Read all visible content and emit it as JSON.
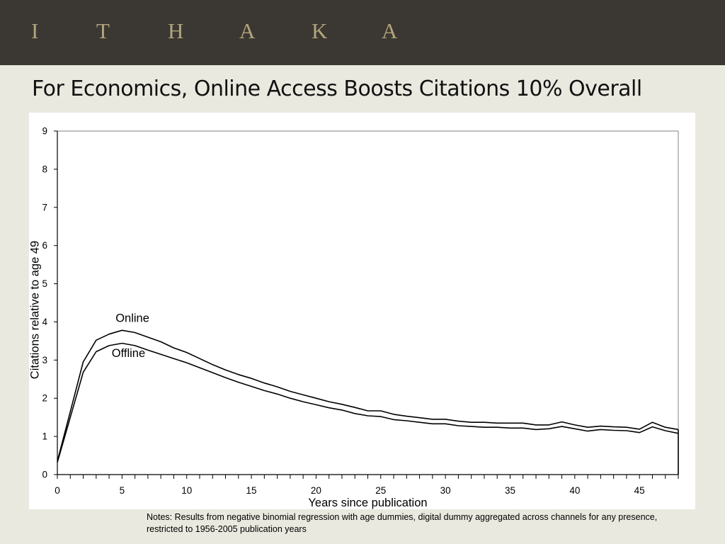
{
  "header": {
    "logo_letters": [
      "I",
      "T",
      "H",
      "A",
      "K",
      "A"
    ]
  },
  "slide": {
    "title": "For Economics, Online Access Boosts Citations 10% Overall"
  },
  "notes": "Notes: Results from negative binomial regression with age dummies, digital dummy aggregated across channels for any presence, restricted to 1956-2005 publication years",
  "colors": {
    "banner": "#3b3833",
    "logo": "#b3a47c",
    "background": "#e9e9df",
    "line": "#000000"
  },
  "chart_data": {
    "type": "line",
    "xlabel": "Years since publication",
    "ylabel": "Citations relative to age 49",
    "xlim": [
      0,
      48
    ],
    "ylim": [
      0,
      9
    ],
    "xticks": [
      0,
      5,
      10,
      15,
      20,
      25,
      30,
      35,
      40,
      45
    ],
    "yticks": [
      0,
      1,
      2,
      3,
      4,
      5,
      6,
      7,
      8,
      9
    ],
    "grid": false,
    "legend": "inline labels",
    "x": [
      0,
      1,
      2,
      3,
      4,
      5,
      6,
      7,
      8,
      9,
      10,
      11,
      12,
      13,
      14,
      15,
      16,
      17,
      18,
      19,
      20,
      21,
      22,
      23,
      24,
      25,
      26,
      27,
      28,
      29,
      30,
      31,
      32,
      33,
      34,
      35,
      36,
      37,
      38,
      39,
      40,
      41,
      42,
      43,
      44,
      45,
      46,
      47,
      48
    ],
    "series": [
      {
        "name": "Online",
        "values": [
          0.35,
          1.65,
          2.95,
          3.52,
          3.68,
          3.78,
          3.72,
          3.6,
          3.48,
          3.32,
          3.2,
          3.04,
          2.88,
          2.74,
          2.62,
          2.52,
          2.4,
          2.3,
          2.18,
          2.09,
          2.0,
          1.91,
          1.84,
          1.76,
          1.67,
          1.67,
          1.58,
          1.53,
          1.49,
          1.45,
          1.45,
          1.4,
          1.37,
          1.37,
          1.35,
          1.35,
          1.35,
          1.3,
          1.3,
          1.38,
          1.3,
          1.24,
          1.27,
          1.25,
          1.24,
          1.19,
          1.37,
          1.24,
          1.18
        ]
      },
      {
        "name": "Offline",
        "values": [
          0.32,
          1.5,
          2.68,
          3.22,
          3.38,
          3.44,
          3.38,
          3.26,
          3.15,
          3.04,
          2.93,
          2.8,
          2.67,
          2.54,
          2.42,
          2.31,
          2.2,
          2.11,
          2.0,
          1.91,
          1.83,
          1.75,
          1.69,
          1.6,
          1.54,
          1.52,
          1.44,
          1.41,
          1.37,
          1.33,
          1.33,
          1.28,
          1.26,
          1.24,
          1.24,
          1.22,
          1.22,
          1.18,
          1.2,
          1.26,
          1.2,
          1.14,
          1.18,
          1.16,
          1.15,
          1.1,
          1.25,
          1.15,
          1.08
        ]
      }
    ],
    "annotations": [
      {
        "text": "Online",
        "x": 4.5,
        "y": 4.0
      },
      {
        "text": "Offline",
        "x": 4.2,
        "y": 3.08
      }
    ]
  }
}
